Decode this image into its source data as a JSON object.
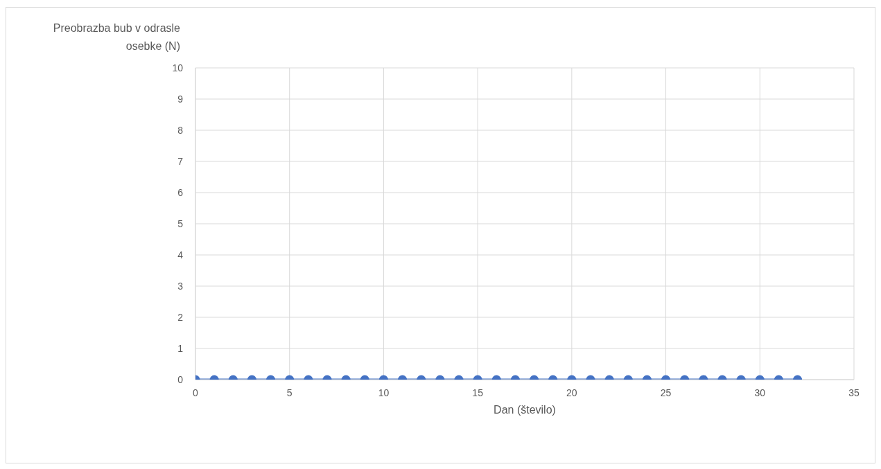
{
  "chart_data": {
    "type": "line",
    "ylabel": "Preobrazba bub v odrasle osebke (N)",
    "xlabel": "Dan (število)",
    "x": [
      0,
      1,
      2,
      3,
      4,
      5,
      6,
      7,
      8,
      9,
      10,
      11,
      12,
      13,
      14,
      15,
      16,
      17,
      18,
      19,
      20,
      21,
      22,
      23,
      24,
      25,
      26,
      27,
      28,
      29,
      30,
      31,
      32
    ],
    "series": [
      {
        "color": "#4472c4",
        "values": [
          0,
          0,
          0,
          0,
          0,
          0,
          0,
          0,
          0,
          0,
          0,
          0,
          0,
          0,
          0,
          0,
          0,
          0,
          0,
          0,
          0,
          0,
          0,
          0,
          0,
          0,
          0,
          0,
          0,
          0,
          0,
          0,
          0
        ]
      }
    ],
    "xlim": [
      0,
      35
    ],
    "xticks": [
      0,
      5,
      10,
      15,
      20,
      25,
      30,
      35
    ],
    "ylim": [
      0,
      10
    ],
    "yticks": [
      0,
      1,
      2,
      3,
      4,
      5,
      6,
      7,
      8,
      9,
      10
    ],
    "grid": true,
    "marker": "circle",
    "line_style": "solid"
  }
}
